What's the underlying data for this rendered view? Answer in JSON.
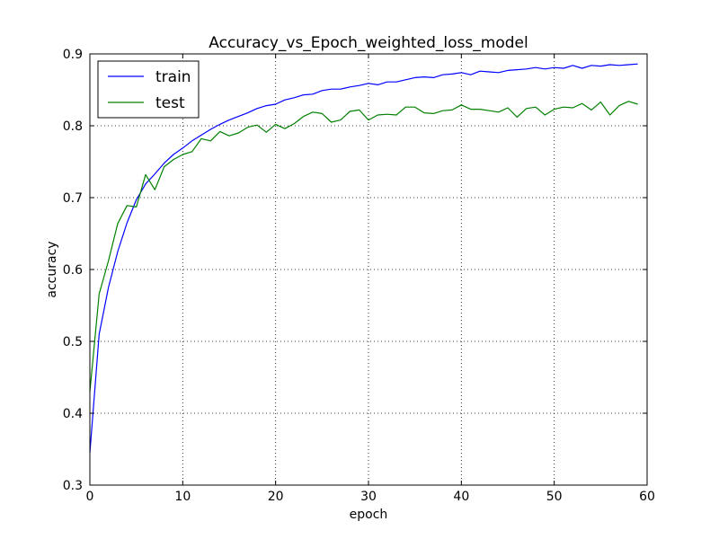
{
  "chart_data": {
    "type": "line",
    "title": "Accuracy_vs_Epoch_weighted_loss_model",
    "xlabel": "epoch",
    "ylabel": "accuracy",
    "xlim": [
      0,
      60
    ],
    "ylim": [
      0.3,
      0.9
    ],
    "xticks": [
      0,
      10,
      20,
      30,
      40,
      50,
      60
    ],
    "xtick_labels": [
      "0",
      "10",
      "20",
      "30",
      "40",
      "50",
      "60"
    ],
    "yticks": [
      0.3,
      0.4,
      0.5,
      0.6,
      0.7,
      0.8,
      0.9
    ],
    "ytick_labels": [
      "0.3",
      "0.4",
      "0.5",
      "0.6",
      "0.7",
      "0.8",
      "0.9"
    ],
    "grid": true,
    "legend_position": "top-left",
    "x": [
      0,
      1,
      2,
      3,
      4,
      5,
      6,
      7,
      8,
      9,
      10,
      11,
      12,
      13,
      14,
      15,
      16,
      17,
      18,
      19,
      20,
      21,
      22,
      23,
      24,
      25,
      26,
      27,
      28,
      29,
      30,
      31,
      32,
      33,
      34,
      35,
      36,
      37,
      38,
      39,
      40,
      41,
      42,
      43,
      44,
      45,
      46,
      47,
      48,
      49,
      50,
      51,
      52,
      53,
      54,
      55,
      56,
      57,
      58,
      59
    ],
    "series": [
      {
        "name": "train",
        "color": "#0000ff",
        "values": [
          0.345,
          0.51,
          0.575,
          0.625,
          0.665,
          0.697,
          0.719,
          0.733,
          0.748,
          0.76,
          0.769,
          0.779,
          0.787,
          0.795,
          0.802,
          0.808,
          0.813,
          0.818,
          0.824,
          0.828,
          0.83,
          0.836,
          0.839,
          0.843,
          0.844,
          0.849,
          0.851,
          0.851,
          0.854,
          0.856,
          0.859,
          0.857,
          0.861,
          0.861,
          0.864,
          0.867,
          0.868,
          0.867,
          0.871,
          0.872,
          0.874,
          0.871,
          0.876,
          0.875,
          0.874,
          0.877,
          0.878,
          0.879,
          0.881,
          0.879,
          0.881,
          0.88,
          0.884,
          0.88,
          0.884,
          0.883,
          0.885,
          0.884,
          0.885,
          0.886
        ]
      },
      {
        "name": "test",
        "color": "#008000",
        "values": [
          0.43,
          0.566,
          0.612,
          0.664,
          0.689,
          0.687,
          0.732,
          0.711,
          0.743,
          0.753,
          0.76,
          0.764,
          0.782,
          0.779,
          0.792,
          0.786,
          0.79,
          0.798,
          0.801,
          0.791,
          0.802,
          0.796,
          0.803,
          0.813,
          0.819,
          0.817,
          0.805,
          0.808,
          0.82,
          0.822,
          0.808,
          0.815,
          0.816,
          0.815,
          0.826,
          0.826,
          0.818,
          0.817,
          0.821,
          0.822,
          0.829,
          0.823,
          0.823,
          0.821,
          0.819,
          0.825,
          0.812,
          0.824,
          0.826,
          0.815,
          0.823,
          0.826,
          0.825,
          0.831,
          0.822,
          0.833,
          0.815,
          0.828,
          0.834,
          0.83
        ]
      }
    ]
  }
}
